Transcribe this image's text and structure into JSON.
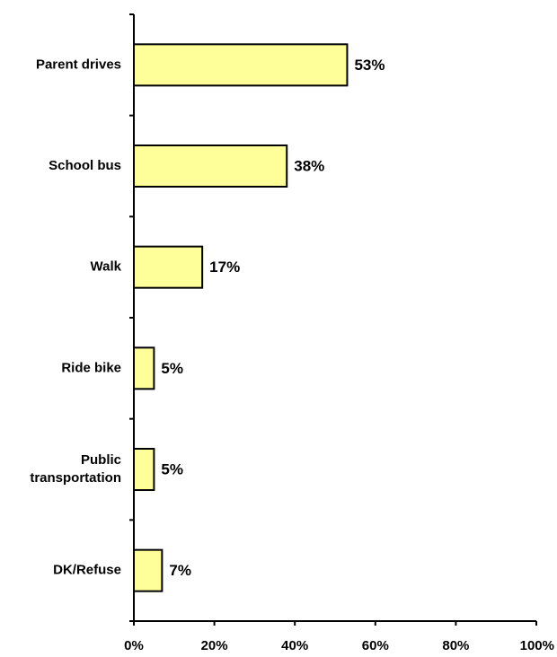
{
  "chart_data": {
    "type": "bar",
    "orientation": "horizontal",
    "categories": [
      [
        "Parent drives"
      ],
      [
        "School bus"
      ],
      [
        "Walk"
      ],
      [
        "Ride bike"
      ],
      [
        "Public",
        "transportation"
      ],
      [
        "DK/Refuse"
      ]
    ],
    "values": [
      53,
      38,
      17,
      5,
      5,
      7
    ],
    "value_labels": [
      "53%",
      "38%",
      "17%",
      "5%",
      "5%",
      "7%"
    ],
    "x_ticks": [
      "0%",
      "20%",
      "40%",
      "60%",
      "80%",
      "100%"
    ],
    "xlim": [
      0,
      100
    ],
    "title": "",
    "xlabel": "",
    "ylabel": "",
    "grid": false,
    "legend": "none",
    "colors": {
      "bar_fill": "#ffff99",
      "bar_stroke": "#000000",
      "text": "#000000"
    }
  }
}
